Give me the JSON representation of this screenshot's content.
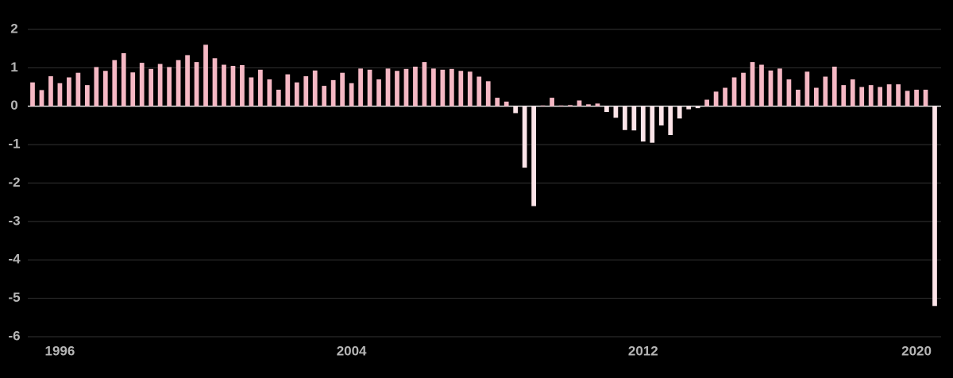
{
  "chart_data": {
    "type": "bar",
    "categories": [
      null,
      null,
      null,
      "1996",
      null,
      null,
      null,
      null,
      null,
      null,
      null,
      null,
      null,
      null,
      null,
      null,
      null,
      null,
      null,
      null,
      null,
      null,
      null,
      null,
      null,
      null,
      null,
      null,
      null,
      null,
      null,
      null,
      null,
      null,
      null,
      "2004",
      null,
      null,
      null,
      null,
      null,
      null,
      null,
      null,
      null,
      null,
      null,
      null,
      null,
      null,
      null,
      null,
      null,
      null,
      null,
      null,
      null,
      null,
      null,
      null,
      null,
      null,
      null,
      null,
      null,
      null,
      null,
      "2012",
      null,
      null,
      null,
      null,
      null,
      null,
      null,
      null,
      null,
      null,
      null,
      null,
      null,
      null,
      null,
      null,
      null,
      null,
      null,
      null,
      null,
      null,
      null,
      null,
      null,
      null,
      null,
      null,
      null,
      "2020",
      null,
      null
    ],
    "values": [
      0.62,
      0.42,
      0.78,
      0.6,
      0.75,
      0.87,
      0.55,
      1.02,
      0.92,
      1.2,
      1.38,
      0.88,
      1.13,
      0.97,
      1.1,
      1.02,
      1.2,
      1.33,
      1.15,
      1.6,
      1.25,
      1.08,
      1.05,
      1.07,
      0.75,
      0.95,
      0.7,
      0.43,
      0.83,
      0.62,
      0.78,
      0.93,
      0.53,
      0.68,
      0.87,
      0.6,
      0.98,
      0.95,
      0.7,
      0.98,
      0.92,
      0.97,
      1.03,
      1.15,
      0.98,
      0.95,
      0.97,
      0.92,
      0.9,
      0.77,
      0.65,
      0.22,
      0.12,
      -0.18,
      -1.6,
      -2.6,
      0.02,
      0.22,
      0.02,
      0.03,
      0.15,
      0.05,
      0.07,
      -0.15,
      -0.3,
      -0.62,
      -0.63,
      -0.92,
      -0.95,
      -0.5,
      -0.75,
      -0.32,
      -0.08,
      -0.05,
      0.17,
      0.38,
      0.48,
      0.75,
      0.87,
      1.15,
      1.08,
      0.93,
      0.98,
      0.7,
      0.43,
      0.9,
      0.48,
      0.77,
      1.03,
      0.55,
      0.7,
      0.5,
      0.55,
      0.5,
      0.57,
      0.57,
      0.4,
      0.43,
      0.43,
      -5.2
    ],
    "colors": {
      "positive": "#f5b8c4",
      "negative": "#fce4e8"
    },
    "ylim": [
      -6,
      2
    ],
    "yticks": [
      -6,
      -5,
      -4,
      -3,
      -2,
      -1,
      0,
      1,
      2
    ],
    "grid": true
  }
}
